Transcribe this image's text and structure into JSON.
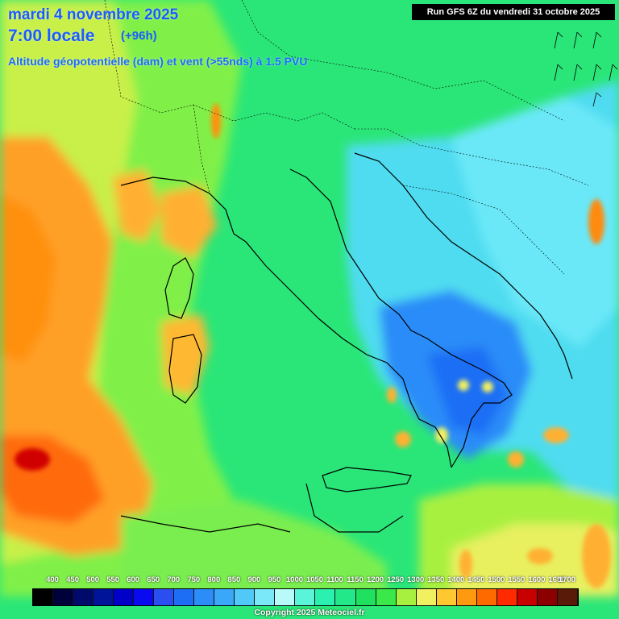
{
  "header": {
    "date_line": "mardi 4 novembre 2025",
    "time_line": "7:00 locale",
    "lead_time": "(+96h)",
    "parameter": "Altitude géopotentielle (dam) et vent (>55nds) à 1.5 PVU",
    "run_info": "Run GFS 6Z du vendredi 31 octobre 2025"
  },
  "legend": {
    "labels": [
      "400",
      "450",
      "500",
      "550",
      "600",
      "650",
      "700",
      "750",
      "800",
      "850",
      "900",
      "950",
      "1000",
      "1050",
      "1100",
      "1150",
      "1200",
      "1250",
      "1300",
      "1350",
      "1400",
      "1450",
      "1500",
      "1550",
      "1600",
      "1650",
      "1700"
    ],
    "colors": [
      "#000000",
      "#00003a",
      "#000a6a",
      "#00149a",
      "#0000c8",
      "#0a0af0",
      "#2a4ef0",
      "#1e6ef5",
      "#2c8cf8",
      "#3aa8f8",
      "#50c8f8",
      "#7ae8f8",
      "#b8fafa",
      "#5af5d8",
      "#2af0b0",
      "#22e88a",
      "#20e060",
      "#3ae84a",
      "#a8f040",
      "#f0f060",
      "#ffc830",
      "#ff9a10",
      "#ff6a00",
      "#ff2a00",
      "#c80000",
      "#8c0000",
      "#5a1a08"
    ]
  },
  "footer": {
    "copyright": "Copyright 2025 Meteociel.fr"
  },
  "map_colors": {
    "green": "#22e870",
    "light_green": "#70f050",
    "yellow_green": "#b8f040",
    "orange": "#ff9a10",
    "red": "#e00000",
    "cyan": "#50e8f8",
    "blue": "#2a8cf8",
    "coast": "#000000"
  }
}
